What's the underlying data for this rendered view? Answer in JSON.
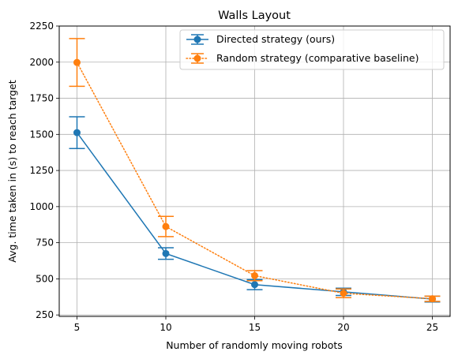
{
  "chart_data": {
    "type": "line",
    "title": "Walls Layout",
    "xlabel": "Number of randomly moving robots",
    "ylabel": "Avg. time taken in (s) to reach target",
    "x": [
      5,
      10,
      15,
      20,
      25
    ],
    "xticks": [
      5,
      10,
      15,
      20,
      25
    ],
    "xlim": [
      4,
      26
    ],
    "yticks": [
      250,
      500,
      750,
      1000,
      1250,
      1500,
      1750,
      2000,
      2250
    ],
    "ylim": [
      240,
      2250
    ],
    "grid": true,
    "legend_position": "top-right",
    "series": [
      {
        "name": "Directed strategy (ours)",
        "color": "#1f77b4",
        "linestyle": "solid",
        "marker": "circle",
        "values": [
          1512,
          675,
          460,
          410,
          360
        ],
        "errors": [
          110,
          40,
          35,
          25,
          20
        ]
      },
      {
        "name": "Random strategy (comparative baseline)",
        "color": "#ff7f0e",
        "linestyle": "dotted",
        "marker": "circle",
        "values": [
          1998,
          862,
          522,
          400,
          362
        ],
        "errors": [
          165,
          70,
          35,
          30,
          18
        ]
      }
    ]
  }
}
